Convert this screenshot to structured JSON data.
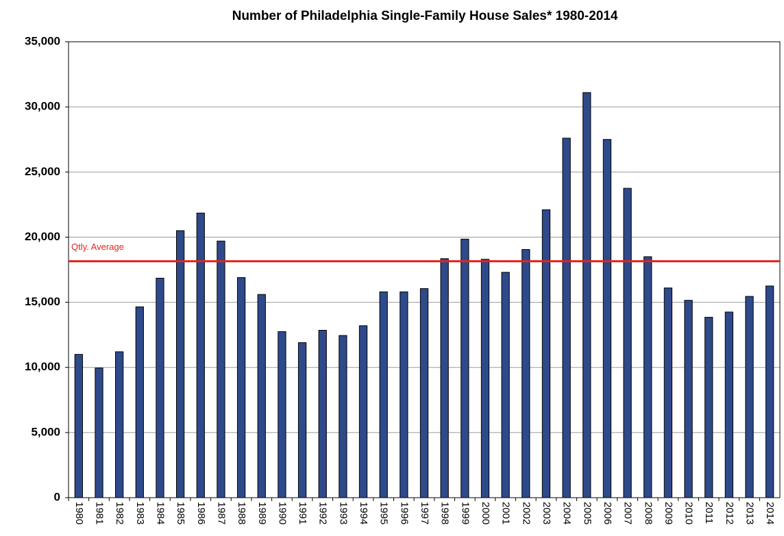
{
  "chart_data": {
    "type": "bar",
    "title": "Number of Philadelphia Single-Family House Sales* 1980-2014",
    "categories": [
      "1980",
      "1981",
      "1982",
      "1983",
      "1984",
      "1985",
      "1986",
      "1987",
      "1988",
      "1989",
      "1990",
      "1991",
      "1992",
      "1993",
      "1994",
      "1995",
      "1996",
      "1997",
      "1998",
      "1999",
      "2000",
      "2001",
      "2002",
      "2003",
      "2004",
      "2005",
      "2006",
      "2007",
      "2008",
      "2009",
      "2010",
      "2011",
      "2012",
      "2013",
      "2014"
    ],
    "values": [
      11000,
      9950,
      11200,
      14650,
      16850,
      20500,
      21850,
      19700,
      16900,
      15600,
      12750,
      11900,
      12850,
      12450,
      13200,
      15800,
      15800,
      16050,
      18350,
      19850,
      18300,
      17300,
      19050,
      22100,
      27600,
      31100,
      27500,
      23750,
      18500,
      16100,
      15150,
      13850,
      14250,
      15450,
      16250
    ],
    "color": "#2e4a8a",
    "ylim": [
      0,
      35000
    ],
    "yticks": [
      0,
      {
        "value": 5000,
        "label": "5,000"
      },
      {
        "value": 10000,
        "label": "10,000"
      },
      {
        "value": 15000,
        "label": "15,000"
      },
      {
        "value": 20000,
        "label": "20,000"
      },
      {
        "value": 25000,
        "label": "25,000"
      },
      {
        "value": 30000,
        "label": "30,000"
      },
      {
        "value": 35000,
        "label": "35,000"
      }
    ],
    "grid": true,
    "reference_line": {
      "label": "Qtly. Average",
      "value": 18150,
      "color": "#e8221a"
    }
  }
}
